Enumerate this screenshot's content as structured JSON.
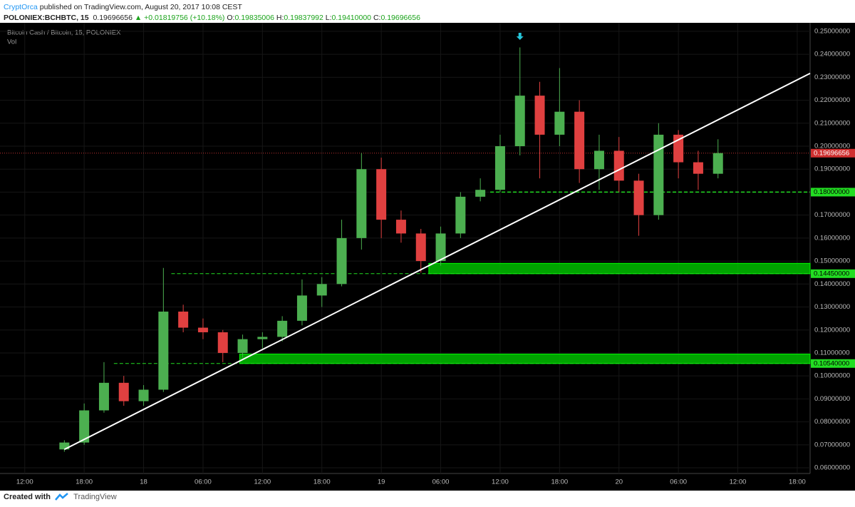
{
  "header": {
    "author": "CryptOrca",
    "published": "published on TradingView.com, August 20, 2017 10:08 CEST",
    "symbol": "POLONIEX:BCHBTC, 15",
    "last": "0.19696656",
    "change": "▲ +0.01819756 (+10.18%)",
    "ohlc": [
      {
        "label": "O:",
        "value": "0.19835006"
      },
      {
        "label": "H:",
        "value": "0.19837992"
      },
      {
        "label": "L:",
        "value": "0.19410000"
      },
      {
        "label": "C:",
        "value": "0.19696656"
      }
    ]
  },
  "footer": {
    "created": "Created with",
    "brand": "TradingView"
  },
  "chart_data": {
    "type": "candlestick",
    "title": "Bitcoin Cash / Bitcoin, 15, POLONIEX",
    "subtitle": "Vol",
    "up_color": "#4caf50",
    "down_color": "#e04040",
    "grid": true,
    "x": [
      4,
      6,
      8,
      10,
      12,
      14,
      16,
      18,
      20,
      22,
      24,
      26,
      28,
      30,
      32,
      34,
      36,
      38,
      40,
      42,
      44,
      46,
      48,
      50,
      52,
      54,
      56,
      58,
      60,
      62,
      64,
      66,
      68,
      70
    ],
    "open": [
      0.068,
      0.071,
      0.085,
      0.097,
      0.089,
      0.094,
      0.128,
      0.121,
      0.119,
      0.11,
      0.116,
      0.117,
      0.124,
      0.135,
      0.14,
      0.16,
      0.19,
      0.168,
      0.162,
      0.15,
      0.162,
      0.178,
      0.181,
      0.2,
      0.222,
      0.205,
      0.215,
      0.19,
      0.198,
      0.185,
      0.17,
      0.205,
      0.193,
      0.188
    ],
    "high": [
      0.072,
      0.088,
      0.106,
      0.1,
      0.096,
      0.147,
      0.131,
      0.125,
      0.12,
      0.118,
      0.119,
      0.126,
      0.142,
      0.143,
      0.168,
      0.197,
      0.195,
      0.172,
      0.164,
      0.165,
      0.18,
      0.186,
      0.205,
      0.243,
      0.228,
      0.234,
      0.22,
      0.205,
      0.204,
      0.188,
      0.21,
      0.207,
      0.198,
      0.203
    ],
    "low": [
      0.067,
      0.07,
      0.084,
      0.087,
      0.087,
      0.093,
      0.119,
      0.116,
      0.106,
      0.108,
      0.112,
      0.115,
      0.122,
      0.13,
      0.139,
      0.155,
      0.16,
      0.158,
      0.145,
      0.148,
      0.16,
      0.176,
      0.18,
      0.196,
      0.186,
      0.2,
      0.184,
      0.181,
      0.18,
      0.161,
      0.168,
      0.186,
      0.181,
      0.186
    ],
    "close": [
      0.071,
      0.085,
      0.097,
      0.089,
      0.094,
      0.128,
      0.121,
      0.119,
      0.11,
      0.116,
      0.117,
      0.124,
      0.135,
      0.14,
      0.16,
      0.19,
      0.168,
      0.162,
      0.15,
      0.162,
      0.178,
      0.181,
      0.2,
      0.222,
      0.205,
      0.215,
      0.19,
      0.198,
      0.185,
      0.17,
      0.205,
      0.193,
      0.188,
      0.197
    ],
    "xlim": [
      -2.5,
      79.3
    ],
    "ylim": [
      0.0507,
      0.2537
    ],
    "xticks": [
      {
        "value": 0,
        "label": "12:00"
      },
      {
        "value": 6,
        "label": "18:00"
      },
      {
        "value": 12,
        "label": "18"
      },
      {
        "value": 18,
        "label": "06:00"
      },
      {
        "value": 24,
        "label": "12:00"
      },
      {
        "value": 30,
        "label": "18:00"
      },
      {
        "value": 36,
        "label": "19"
      },
      {
        "value": 42,
        "label": "06:00"
      },
      {
        "value": 48,
        "label": "12:00"
      },
      {
        "value": 54,
        "label": "18:00"
      },
      {
        "value": 60,
        "label": "20"
      },
      {
        "value": 66,
        "label": "06:00"
      },
      {
        "value": 72,
        "label": "12:00"
      },
      {
        "value": 78,
        "label": "18:00"
      }
    ],
    "yticks": [
      {
        "value": 0.06,
        "label": "0.06000000"
      },
      {
        "value": 0.07,
        "label": "0.07000000"
      },
      {
        "value": 0.08,
        "label": "0.08000000"
      },
      {
        "value": 0.09,
        "label": "0.09000000"
      },
      {
        "value": 0.1,
        "label": "0.10000000"
      },
      {
        "value": 0.11,
        "label": "0.11000000"
      },
      {
        "value": 0.12,
        "label": "0.12000000"
      },
      {
        "value": 0.13,
        "label": "0.13000000"
      },
      {
        "value": 0.14,
        "label": "0.14000000"
      },
      {
        "value": 0.15,
        "label": "0.15000000"
      },
      {
        "value": 0.16,
        "label": "0.16000000"
      },
      {
        "value": 0.17,
        "label": "0.17000000"
      },
      {
        "value": 0.18,
        "label": "0.18000000"
      },
      {
        "value": 0.19,
        "label": "0.19000000"
      },
      {
        "value": 0.2,
        "label": "0.20000000"
      },
      {
        "value": 0.21,
        "label": "0.21000000"
      },
      {
        "value": 0.22,
        "label": "0.22000000"
      },
      {
        "value": 0.23,
        "label": "0.23000000"
      },
      {
        "value": 0.24,
        "label": "0.24000000"
      },
      {
        "value": 0.25,
        "label": "0.25000000"
      }
    ],
    "levels": [
      {
        "value": 0.18,
        "label": "0.18000000",
        "start": 47
      },
      {
        "value": 0.1445,
        "label": "0.14450000",
        "start": 14.8
      },
      {
        "value": 0.1054,
        "label": "0.10540000",
        "start": 9
      }
    ],
    "zones": [
      {
        "from": 0.1445,
        "to": 0.149,
        "start": 40.8
      },
      {
        "from": 0.1054,
        "to": 0.1095,
        "start": 21.7
      }
    ],
    "last_price": {
      "value": 0.19696656,
      "label": "0.19696656"
    },
    "trendline": {
      "x": [
        4,
        79.3
      ],
      "y": [
        0.068,
        0.2317
      ]
    },
    "marker": {
      "x": 50,
      "y": 0.2475
    }
  }
}
